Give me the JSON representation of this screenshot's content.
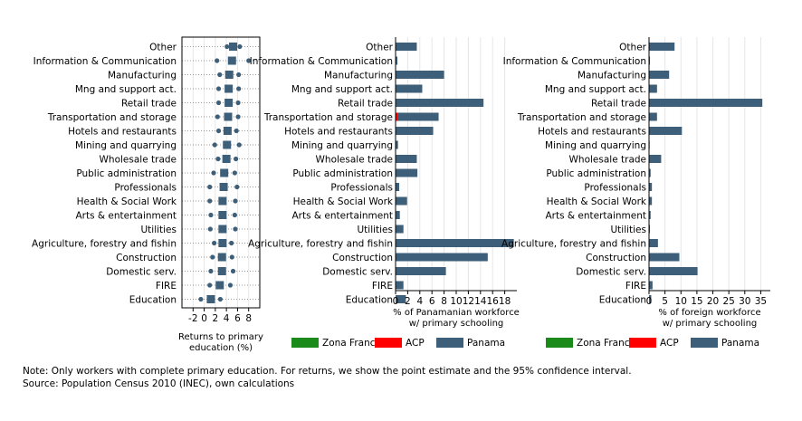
{
  "colors": {
    "panama": "#3e5f79",
    "zona_franca": "#1a8a1a",
    "acp": "#ff0000",
    "grid": "#e6e6e6",
    "frame": "#000000"
  },
  "chart_data": [
    {
      "type": "scatter",
      "title": "",
      "xlabel": "Returns to primary education (%)",
      "ylabel": "",
      "xlim": [
        -4,
        10
      ],
      "xticks": [
        -2,
        0,
        2,
        4,
        6,
        8
      ],
      "grid": true,
      "categories": [
        "Other",
        "Information & Communication",
        "Manufacturing",
        "Mng and support act.",
        "Retail trade",
        "Transportation and storage",
        "Hotels and restaurants",
        "Mining and quarrying",
        "Wholesale trade",
        "Public administration",
        "Professionals",
        "Health & Social Work",
        "Arts & entertainment",
        "Utilities",
        "Agriculture, forestry and fishin",
        "Construction",
        "Domestic serv.",
        "FIRE",
        "Education"
      ],
      "estimate": [
        5.2,
        5.0,
        4.5,
        4.4,
        4.4,
        4.3,
        4.2,
        4.1,
        4.0,
        3.6,
        3.5,
        3.3,
        3.3,
        3.3,
        3.3,
        3.2,
        3.2,
        2.8,
        1.2
      ],
      "ci_low": [
        4.1,
        2.3,
        2.8,
        2.6,
        2.6,
        2.4,
        2.6,
        1.9,
        2.5,
        1.7,
        1.0,
        1.0,
        1.2,
        1.1,
        1.8,
        1.5,
        1.2,
        1.0,
        -0.6
      ],
      "ci_high": [
        6.4,
        8.0,
        6.2,
        6.2,
        6.1,
        6.1,
        5.8,
        6.3,
        5.7,
        5.5,
        5.9,
        5.6,
        5.5,
        5.6,
        4.9,
        5.0,
        5.2,
        4.7,
        2.9
      ]
    },
    {
      "type": "bar",
      "title": "",
      "xlabel": "% of Panamanian workforce w/ primary schooling",
      "ylabel": "",
      "xlim": [
        0,
        20
      ],
      "xticks": [
        0,
        2,
        4,
        6,
        8,
        10,
        12,
        14,
        16,
        18
      ],
      "grid": true,
      "categories": [
        "Other",
        "Information & Communication",
        "Manufacturing",
        "Mng and support act.",
        "Retail trade",
        "Transportation and storage",
        "Hotels and restaurants",
        "Mining and quarrying",
        "Wholesale trade",
        "Public administration",
        "Professionals",
        "Health & Social Work",
        "Arts & entertainment",
        "Utilities",
        "Agriculture, forestry and fishin",
        "Construction",
        "Domestic serv.",
        "FIRE",
        "Education"
      ],
      "series": [
        {
          "name": "Zona Franca",
          "values": [
            0,
            0,
            0,
            0,
            0,
            0,
            0,
            0,
            0,
            0,
            0,
            0,
            0,
            0,
            0,
            0,
            0,
            0,
            0
          ]
        },
        {
          "name": "ACP",
          "values": [
            0,
            0,
            0,
            0,
            0,
            0.3,
            0,
            0,
            0,
            0,
            0,
            0,
            0,
            0,
            0,
            0,
            0,
            0,
            0
          ]
        },
        {
          "name": "Panama",
          "values": [
            3.5,
            0.3,
            8.0,
            4.4,
            14.5,
            6.8,
            6.2,
            0.4,
            3.5,
            3.6,
            0.6,
            1.9,
            0.7,
            1.3,
            19.5,
            15.2,
            8.3,
            1.3,
            1.7
          ]
        }
      ],
      "legend_position": "bottom"
    },
    {
      "type": "bar",
      "title": "",
      "xlabel": "% of foreign workforce w/ primary schooling",
      "ylabel": "",
      "xlim": [
        0,
        38
      ],
      "xticks": [
        0,
        5,
        10,
        15,
        20,
        25,
        30,
        35
      ],
      "grid": true,
      "categories": [
        "Other",
        "Information & Communication",
        "Manufacturing",
        "Mng and support act.",
        "Retail trade",
        "Transportation and storage",
        "Hotels and restaurants",
        "Mining and quarrying",
        "Wholesale trade",
        "Public administration",
        "Professionals",
        "Health & Social Work",
        "Arts & entertainment",
        "Utilities",
        "Agriculture, forestry and fishin",
        "Construction",
        "Domestic serv.",
        "FIRE",
        "Education"
      ],
      "series": [
        {
          "name": "Zona Franca",
          "values": [
            0,
            0,
            0,
            0,
            0,
            0,
            0,
            0,
            0,
            0,
            0,
            0,
            0,
            0,
            0,
            0,
            0,
            0,
            0
          ]
        },
        {
          "name": "ACP",
          "values": [
            0,
            0,
            0,
            0,
            0,
            0,
            0,
            0,
            0,
            0,
            0,
            0,
            0,
            0,
            0,
            0,
            0,
            0,
            0
          ]
        },
        {
          "name": "Panama",
          "values": [
            8.0,
            0.3,
            6.3,
            2.5,
            35.5,
            2.5,
            10.3,
            0.2,
            3.8,
            0.5,
            0.9,
            0.9,
            0.5,
            0.3,
            2.8,
            9.5,
            15.2,
            1.1,
            0.7
          ]
        }
      ],
      "legend_position": "bottom"
    }
  ],
  "legend": [
    {
      "label": "Zona Franca",
      "color_key": "zona_franca"
    },
    {
      "label": "ACP",
      "color_key": "acp"
    },
    {
      "label": "Panama",
      "color_key": "panama"
    }
  ],
  "notes": {
    "line1": "Note: Only workers with complete primary education. For returns, we show the point estimate and the 95% confidence interval.",
    "line2": "Source: Population Census 2010 (INEC), own calculations"
  }
}
